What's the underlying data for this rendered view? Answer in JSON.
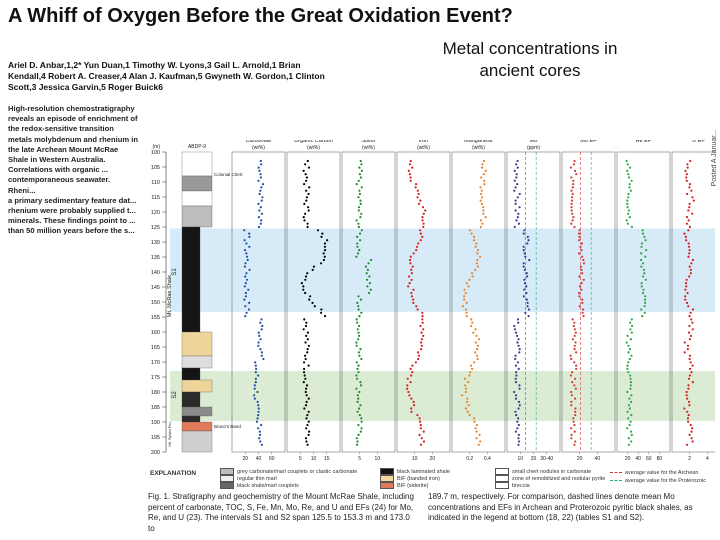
{
  "paper": {
    "title": "A Whiff of Oxygen Before the Great Oxidation Event?",
    "authors": "Ariel D. Anbar,1,2* Yun Duan,1 Timothy W. Lyons,3 Gail L. Arnold,1 Brian Kendall,4 Robert A. Creaser,4 Alan J. Kaufman,5 Gwyneth W. Gordon,1 Clinton Scott,3 Jessica Garvin,5 Roger Buick6",
    "abstract": "High-resolution chemostratigraphy reveals an episode of enrichment of the redox-sensitive transition metals molybdenum and rhenium in the late Archean Mount McRae Shale in Western Australia. Correlations with organic ...\ncontemporaneous seawater. Rheni...\na primary sedimentary feature dat...\nrhenium were probably supplied t...\nminerals. These findings point to ...\nthan 50 million years before the s..."
  },
  "slide": {
    "caption": "Metal concentrations in ancient cores"
  },
  "figure": {
    "column_labels": [
      {
        "name": "Carbonate",
        "unit": "(wt%)"
      },
      {
        "name": "Organic Carbon",
        "unit": "(wt%)"
      },
      {
        "name": "Sulfur",
        "unit": "(wt%)"
      },
      {
        "name": "Iron",
        "unit": "(wt%)"
      },
      {
        "name": "Manganese",
        "unit": "(wt%)"
      },
      {
        "name": "Mo",
        "unit": "(ppm)"
      },
      {
        "name": "Mo EF",
        "unit": ""
      },
      {
        "name": "Re EF",
        "unit": ""
      },
      {
        "name": "U EF",
        "unit": ""
      }
    ],
    "column_ticks": [
      [
        "20",
        "40",
        "60"
      ],
      [
        "5",
        "10",
        "15"
      ],
      [
        "5",
        "10"
      ],
      [
        "10",
        "20"
      ],
      [
        "0.2",
        "0.4"
      ],
      [
        "10",
        "20",
        "30-40"
      ],
      [
        "20",
        "40"
      ],
      [
        "20",
        "40",
        "60",
        "80"
      ],
      [
        "2",
        "4"
      ]
    ],
    "colors": [
      "#1f4ea0",
      "#000000",
      "#1f8a2e",
      "#d42020",
      "#e8842a",
      "#3a3a90",
      "#d43a3a",
      "#2aa84a",
      "#d42020"
    ],
    "depth_ticks": [
      "100",
      "105",
      "110",
      "115",
      "120",
      "125",
      "130",
      "135",
      "140",
      "145",
      "150",
      "155",
      "160",
      "165",
      "170",
      "175",
      "180",
      "185",
      "190",
      "195",
      "200"
    ],
    "depth_unit": "(m)",
    "strat_labels": {
      "unit_label": "Mt. McRae Shale",
      "s1": "S1",
      "s2": "S2",
      "abdp": "ABDP-9",
      "colonial_chert": "Colonial Chert",
      "brunos_band": "Bruno's Band",
      "mt_sylvia": "Mt. Sylvia Fm."
    },
    "bands": {
      "s1_color": "#d6ebf7",
      "s2_color": "#dcecd4"
    }
  },
  "legend": {
    "title": "EXPLANATION",
    "items": [
      "grey carbonate/marl couplets or clastic carbonate",
      "regular thin marl",
      "black shale/marl couplets",
      "black laminated shale",
      "BIF (banded iron)",
      "BIF (siderite)",
      "small chert nodules in carbonate",
      "zone of remobilized and nodular pyrite",
      "breccia",
      "average value for the Archean",
      "average value for the Proterozoic"
    ]
  },
  "caption": {
    "left": "Fig. 1. Stratigraphy and geochemistry of the Mount McRae Shale, including percent of carbonate, TOC, S, Fe, Mn, Mo, Re, and U and EFs (24) for Mo, Re, and U (23). The intervals S1 and S2 span 125.5 to 153.3 m and 173.0 to",
    "right": "189.7 m, respectively. For comparison, dashed lines denote mean Mo concentrations and EFs in Archean and Proterozoic pyritic black shales, as indicated in the legend at bottom (18, 22) (tables S1 and S2)."
  },
  "side": {
    "text": "Posted A Januar..."
  }
}
